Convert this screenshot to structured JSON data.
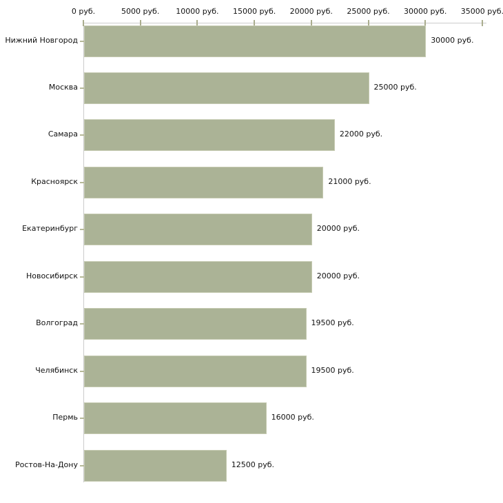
{
  "chart_data": {
    "type": "bar",
    "orientation": "horizontal",
    "title": "",
    "xlabel": "",
    "ylabel": "",
    "grid": false,
    "axis_position": "top",
    "categories": [
      "Нижний Новгород",
      "Москва",
      "Самара",
      "Красноярск",
      "Екатеринбург",
      "Новосибирск",
      "Волгоград",
      "Челябинск",
      "Пермь",
      "Ростов-На-Дону"
    ],
    "values": [
      30000,
      25000,
      22000,
      21000,
      20000,
      20000,
      19500,
      19500,
      16000,
      12500
    ],
    "value_labels": [
      "30000 руб.",
      "25000 руб.",
      "22000 руб.",
      "21000 руб.",
      "20000 руб.",
      "20000 руб.",
      "19500 руб.",
      "19500 руб.",
      "16000 руб.",
      "12500 руб."
    ],
    "x_ticks": [
      0,
      5000,
      10000,
      15000,
      20000,
      25000,
      30000,
      35000
    ],
    "x_tick_labels": [
      "0 руб.",
      "5000 руб.",
      "10000 руб.",
      "15000 руб.",
      "20000 руб.",
      "25000 руб.",
      "30000 руб.",
      "35000 руб."
    ],
    "xlim": [
      0,
      35370
    ],
    "colors": {
      "bar_fill": "#abb396",
      "bar_border": "#c6cbb2",
      "axis_line": "#cbcbcb",
      "x_tick_mark": "#aaad8e",
      "y_tick_mark": "#b5b897",
      "text": "#111111",
      "background": "#ffffff"
    }
  }
}
